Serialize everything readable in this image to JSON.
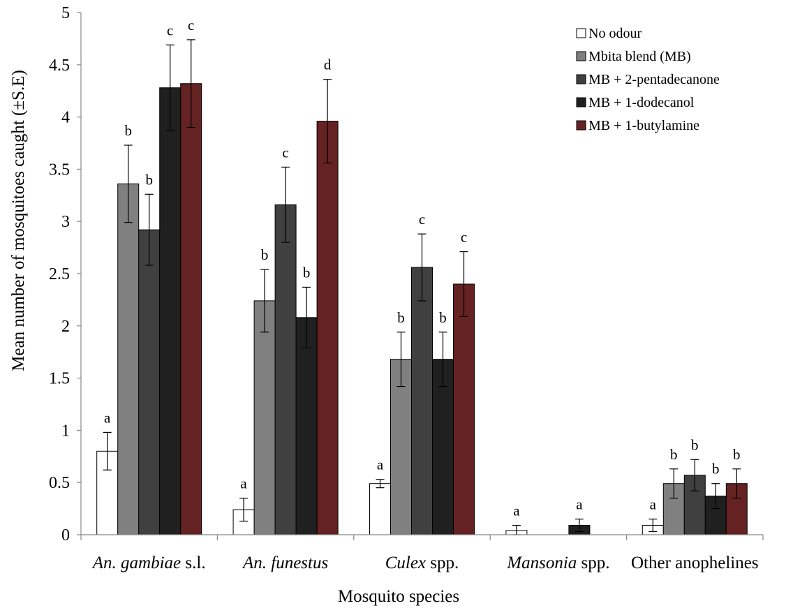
{
  "chart_data": {
    "type": "bar",
    "xlabel": "Mosquito species",
    "ylabel": "Mean number of mosquitoes caught (±S.E)",
    "ylim": [
      0,
      5
    ],
    "yticks": [
      0,
      0.5,
      1,
      1.5,
      2,
      2.5,
      3,
      3.5,
      4,
      4.5,
      5
    ],
    "ytick_labels": [
      "0",
      "0.5",
      "1",
      "1.5",
      "2",
      "2.5",
      "3",
      "3.5",
      "4",
      "4.5",
      "5"
    ],
    "grid": false,
    "legend_position": "top-right",
    "categories": [
      {
        "parts": [
          {
            "text": "An. gambiae",
            "italic": true
          },
          {
            "text": " s.l.",
            "italic": false
          }
        ]
      },
      {
        "parts": [
          {
            "text": "An. funestus",
            "italic": true
          }
        ]
      },
      {
        "parts": [
          {
            "text": "Culex",
            "italic": true
          },
          {
            "text": " spp.",
            "italic": false
          }
        ]
      },
      {
        "parts": [
          {
            "text": "Mansonia",
            "italic": true
          },
          {
            "text": " spp.",
            "italic": false
          }
        ]
      },
      {
        "parts": [
          {
            "text": "Other anophelines",
            "italic": false
          }
        ]
      }
    ],
    "series": [
      {
        "name": "No odour",
        "color": "#ffffff",
        "values": [
          0.8,
          0.24,
          0.49,
          0.04,
          0.09
        ],
        "errors": [
          0.18,
          0.11,
          0.04,
          0.05,
          0.06
        ],
        "labels": [
          "a",
          "a",
          "a",
          "a",
          "a"
        ]
      },
      {
        "name": "Mbita blend (MB)",
        "color": "#808080",
        "values": [
          3.36,
          2.24,
          1.68,
          0,
          0.49
        ],
        "errors": [
          0.37,
          0.3,
          0.26,
          0,
          0.14
        ],
        "labels": [
          "b",
          "b",
          "b",
          "",
          "b"
        ]
      },
      {
        "name": "MB + 2-pentadecanone",
        "color": "#404040",
        "values": [
          2.92,
          3.16,
          2.56,
          0,
          0.57
        ],
        "errors": [
          0.34,
          0.36,
          0.32,
          0,
          0.15
        ],
        "labels": [
          "b",
          "c",
          "c",
          "",
          "b"
        ]
      },
      {
        "name": "MB + 1-dodecanol",
        "color": "#202020",
        "values": [
          4.28,
          2.08,
          1.68,
          0.09,
          0.37
        ],
        "errors": [
          0.41,
          0.29,
          0.26,
          0.06,
          0.12
        ],
        "labels": [
          "c",
          "b",
          "b",
          "a",
          "b"
        ]
      },
      {
        "name": "MB + 1-butylamine",
        "color": "#652222",
        "values": [
          4.32,
          3.96,
          2.4,
          0,
          0.49
        ],
        "errors": [
          0.42,
          0.4,
          0.31,
          0,
          0.14
        ],
        "labels": [
          "c",
          "d",
          "c",
          "",
          "b"
        ]
      }
    ]
  }
}
